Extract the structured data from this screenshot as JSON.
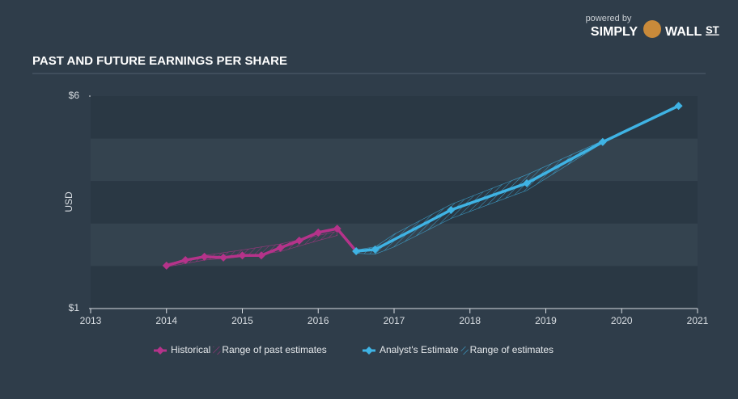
{
  "logo": {
    "powered_by": "powered by",
    "simply": "SIMPLY",
    "wall": "WALL",
    "st": "ST"
  },
  "chart_data": {
    "type": "line",
    "title": "PAST AND FUTURE EARNINGS PER SHARE",
    "y_label": "USD",
    "xlim": [
      2013,
      2021
    ],
    "xticks": [
      2013,
      2014,
      2015,
      2016,
      2017,
      2018,
      2019,
      2020,
      2021
    ],
    "ylim": [
      1,
      6
    ],
    "yticks": [
      {
        "value": 1,
        "label": "$1"
      },
      {
        "value": 6,
        "label": "$6"
      }
    ],
    "series": [
      {
        "name": "Historical",
        "color": "#b5338a",
        "x": [
          2014,
          2014.25,
          2014.5,
          2014.75,
          2015,
          2015.25,
          2015.5,
          2015.75,
          2016,
          2016.25,
          2016.5
        ],
        "values": [
          2.01,
          2.14,
          2.22,
          2.2,
          2.25,
          2.25,
          2.43,
          2.6,
          2.79,
          2.88,
          2.35
        ]
      },
      {
        "name": "Analyst's Estimate",
        "color": "#3fb3e4",
        "x": [
          2016.5,
          2016.75,
          2017.75,
          2018.75,
          2019.75,
          2020.75
        ],
        "values": [
          2.35,
          2.39,
          3.32,
          3.95,
          4.92,
          5.77
        ]
      }
    ],
    "ranges": [
      {
        "name": "Range of past estimates",
        "color": "#b5338a",
        "x": [
          2014,
          2014.5,
          2015,
          2015.5,
          2016,
          2016.25
        ],
        "high": [
          2.05,
          2.25,
          2.38,
          2.52,
          2.72,
          2.82
        ],
        "low": [
          1.98,
          2.14,
          2.22,
          2.34,
          2.6,
          2.72
        ]
      },
      {
        "name": "Range of estimates",
        "color": "#3fb3e4",
        "x": [
          2016.5,
          2016.75,
          2017,
          2017.75,
          2018.75,
          2019.75
        ],
        "high": [
          2.38,
          2.45,
          2.75,
          3.45,
          4.15,
          4.95
        ],
        "low": [
          2.3,
          2.28,
          2.45,
          3.12,
          3.78,
          4.9
        ]
      }
    ]
  }
}
